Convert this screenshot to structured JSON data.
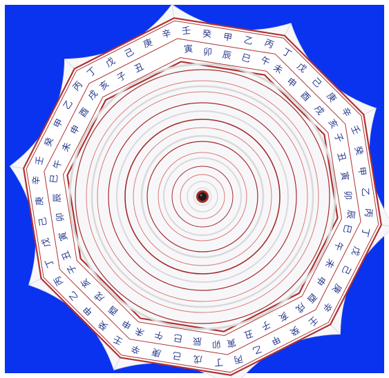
{
  "colors": {
    "frame": "#ffffff",
    "background": "#0a33f0",
    "canopy": "#f7f7f9",
    "canopy_shade": "#dcdde3",
    "band_fill": "#ffffff",
    "band_border": "#b03030",
    "char_color": "#2a3a8c",
    "ring_dark": "#a52a2a",
    "ring_light": "#d77a7a",
    "ring_gray": "#d9d9d9"
  },
  "outer_ring": {
    "characters": [
      "壬",
      "癸",
      "甲",
      "乙",
      "丙",
      "丁",
      "戊",
      "己",
      "庚",
      "辛",
      "壬",
      "癸",
      "甲",
      "乙",
      "丙",
      "丁",
      "戊",
      "己",
      "庚",
      "辛",
      "壬",
      "癸",
      "甲",
      "乙",
      "丙",
      "丁",
      "戊",
      "己",
      "庚",
      "辛",
      "壬",
      "癸",
      "甲",
      "乙",
      "丙",
      "丁",
      "戊",
      "己",
      "庚",
      "辛",
      "壬",
      "癸",
      "甲",
      "乙",
      "丙",
      "丁",
      "戊",
      "己",
      "庚",
      "辛"
    ]
  },
  "inner_ring": {
    "characters": [
      "寅",
      "卯",
      "辰",
      "巳",
      "午",
      "未",
      "申",
      "酉",
      "戌",
      "亥",
      "子",
      "丑",
      "寅",
      "卯",
      "辰",
      "巳",
      "午",
      "未",
      "申",
      "酉",
      "戌",
      "亥",
      "子",
      "丑",
      "寅",
      "卯",
      "辰",
      "巳",
      "午",
      "未",
      "申",
      "酉",
      "戌",
      "亥",
      "子",
      "丑",
      "寅",
      "卯",
      "辰",
      "巳",
      "午",
      "未",
      "申",
      "酉",
      "戌",
      "亥",
      "子",
      "丑"
    ]
  },
  "center_ornament": {
    "icon": "tip-knob-icon"
  }
}
